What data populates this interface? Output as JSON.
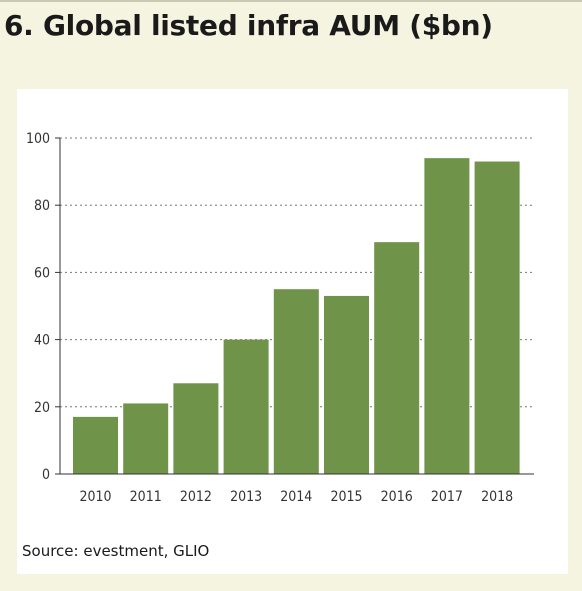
{
  "title": "6. Global listed infra AUM ($bn)",
  "source": "Source: evestment, GLIO",
  "colors": {
    "bar": "#6f9349",
    "background": "#f4f4e1",
    "panel": "#ffffff",
    "grid": "#777777",
    "axis": "#333333"
  },
  "chart_data": {
    "type": "bar",
    "categories": [
      "2010",
      "2011",
      "2012",
      "2013",
      "2014",
      "2015",
      "2016",
      "2017",
      "2018"
    ],
    "values": [
      17,
      21,
      27,
      40,
      55,
      53,
      69,
      94,
      93
    ],
    "yticks": [
      "0",
      "20",
      "40",
      "60",
      "80",
      "100"
    ],
    "ylim": [
      0,
      100
    ],
    "grid": true,
    "legend": "none"
  }
}
